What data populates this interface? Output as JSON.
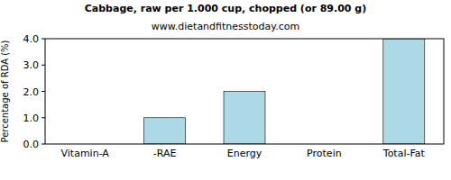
{
  "chart_data": {
    "type": "bar",
    "title": "Cabbage, raw per 1.000 cup, chopped (or 89.00 g)",
    "subtitle": "www.dietandfitnesstoday.com",
    "y_label": "Percentage of RDA (%)",
    "categories": [
      "Vitamin-A",
      "-RAE",
      "Energy",
      "Protein",
      "Total-Fat"
    ],
    "values": [
      0,
      1,
      2,
      0,
      4
    ],
    "color": "#add8e6",
    "ylim": [
      0,
      4
    ],
    "yticks": [
      {
        "value": 0,
        "label": "0.0"
      },
      {
        "value": 1,
        "label": "1.0"
      },
      {
        "value": 2,
        "label": "2.0"
      },
      {
        "value": 3,
        "label": "3.0"
      },
      {
        "value": 4,
        "label": "4.0"
      }
    ],
    "grid": false
  }
}
